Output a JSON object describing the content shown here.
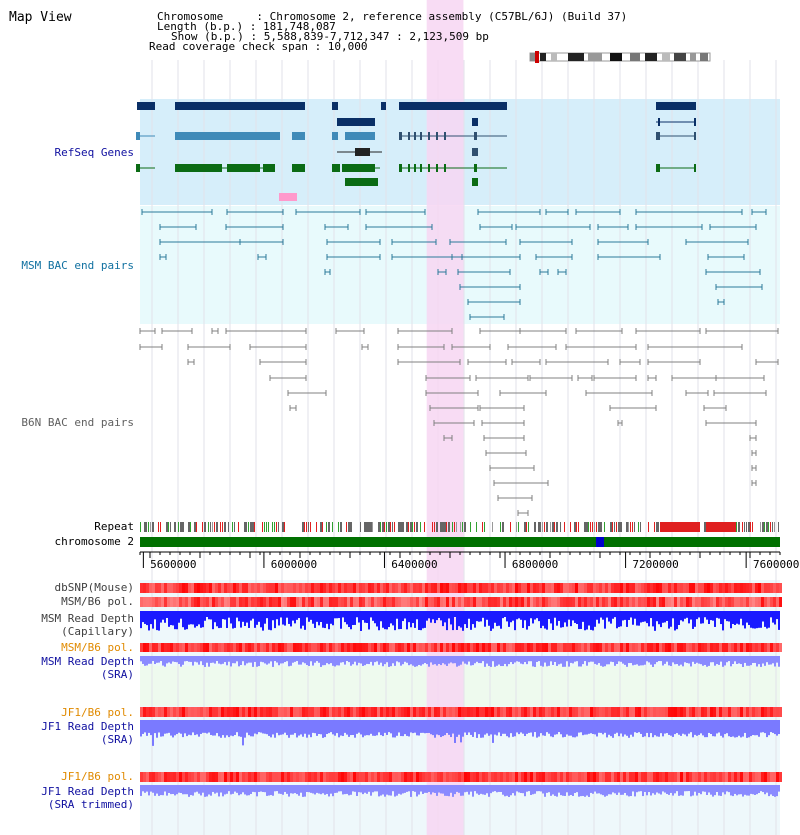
{
  "app": {
    "title": "Map View"
  },
  "header": [
    "Chromosome     : Chromosome 2, reference assembly (C57BL/6J) (Build 37)",
    "Length (b.p.) : 181,748,087",
    "Show (b.p.) : 5,588,839-7,712,347 : 2,123,509 bp",
    "Read coverage check span : 10,000"
  ],
  "tracks": {
    "refseq": "RefSeq Genes",
    "msm_bac": "MSM BAC end pairs",
    "b6n_bac": "B6N BAC end pairs",
    "repeat": "Repeat",
    "chromosome": "chromosome 2",
    "dbsnp": "dbSNP(Mouse)",
    "msm_pol": "MSM/B6 pol.",
    "msm_depth_cap_1": "MSM Read Depth",
    "msm_depth_cap_2": "(Capillary)",
    "msm_pol_sra": "MSM/B6 pol.",
    "msm_depth_sra_1": "MSM Read Depth",
    "msm_depth_sra_2": "(SRA)",
    "jf1_pol": "JF1/B6 pol.",
    "jf1_depth_1": "JF1 Read Depth",
    "jf1_depth_2": "(SRA)",
    "jf1_pol_trim": "JF1/B6 pol.",
    "jf1_trim_1": "JF1 Read Depth",
    "jf1_trim_2": "(SRA trimmed)"
  },
  "axis": {
    "start": 5588839,
    "end": 7712347,
    "ticks": [
      5600000,
      6000000,
      6400000,
      6800000,
      7200000,
      7600000
    ],
    "tick_labels": [
      "5600000",
      "6000000",
      "6400000",
      "6800000",
      "7200000",
      "7600000"
    ]
  },
  "highlight": {
    "start": 6540000,
    "end": 6662000
  },
  "colors": {
    "refseq_dark": "#0a2f66",
    "refseq_mid": "#3f8ab8",
    "refseq_green": "#0b6b14",
    "refseq_bg": "#d6eefa",
    "msm_line": "#2c7a9a",
    "msm_bg": "#e8fafc",
    "b6n_line": "#808080",
    "highlight": "#f7d6f2",
    "chrom_green": "#007000",
    "depth_blue": "#1a1aff",
    "depth_light": "#8a8aff",
    "pol_red": "#ff5555",
    "label_blue": "#1010a0",
    "label_orange": "#e08a00"
  }
}
